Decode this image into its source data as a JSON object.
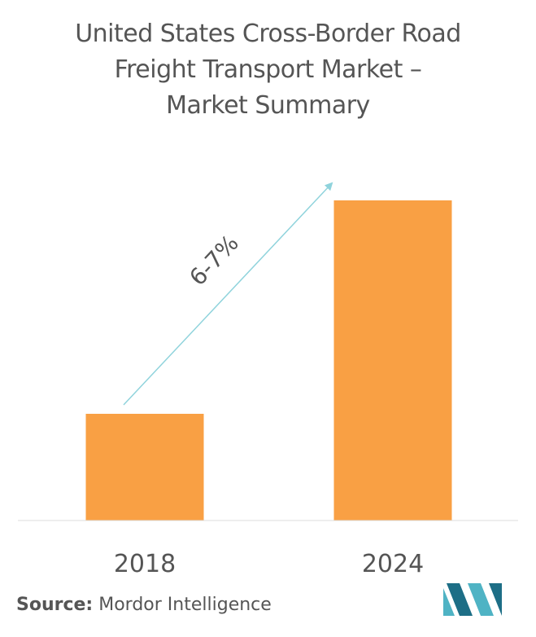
{
  "chart_data": {
    "type": "bar",
    "title_lines": [
      "United States Cross-Border Road",
      "Freight Transport Market –",
      "Market Summary"
    ],
    "categories": [
      "2018",
      "2024"
    ],
    "values": [
      1.0,
      3.0
    ],
    "annotation": "6-7%",
    "bar_color": "#f9a044",
    "arrow_color": "#8fd3dc",
    "grid": false,
    "legend": "none"
  },
  "source": {
    "label": "Source:",
    "text": "Mordor Intelligence"
  },
  "logo": {
    "name": "mordor-intelligence-logo",
    "colors": [
      "#4fb3c4",
      "#1d6e86"
    ]
  }
}
